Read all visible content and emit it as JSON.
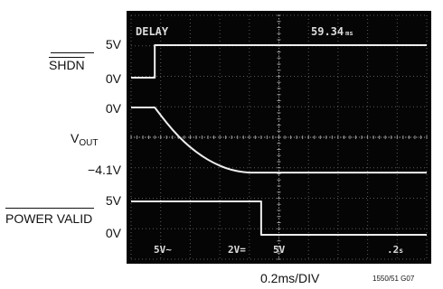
{
  "labels": {
    "shdn": "SHDN",
    "shdn_high": "5V",
    "shdn_low": "0V",
    "vout_zero": "0V",
    "vout_main": "V",
    "vout_sub": "OUT",
    "vout_neg": "−4.1V",
    "pv": "POWER VALID",
    "pv_high": "5V",
    "pv_low": "0V"
  },
  "scope": {
    "delay_label": "DELAY",
    "delay_value": "59.34",
    "delay_unit": "ms",
    "ch1_scale": "5V~",
    "ch2_scale": "2V=",
    "ch3_scale": "5V",
    "timebase": ".2",
    "timebase_suffix": "s"
  },
  "footer": {
    "time_div": "0.2ms/DIV",
    "figure_id": "1550/51 G07"
  },
  "chart_data": {
    "type": "line",
    "title": "",
    "xlabel": "0.2ms/DIV",
    "xunit": "div",
    "xlim": [
      0,
      10
    ],
    "grid": true,
    "series": [
      {
        "name": "SHDN",
        "points": [
          [
            0,
            0
          ],
          [
            0.8,
            0
          ],
          [
            0.8,
            5
          ],
          [
            10,
            5
          ]
        ],
        "unit": "V"
      },
      {
        "name": "VOUT",
        "points": [
          [
            0,
            0
          ],
          [
            0.8,
            0
          ],
          [
            1.2,
            -0.97
          ],
          [
            1.6,
            -1.82
          ],
          [
            2.0,
            -2.51
          ],
          [
            2.4,
            -3.07
          ],
          [
            2.8,
            -3.5
          ],
          [
            3.2,
            -3.82
          ],
          [
            3.6,
            -4.02
          ],
          [
            4.0,
            -4.1
          ],
          [
            10,
            -4.1
          ]
        ],
        "unit": "V"
      },
      {
        "name": "POWER VALID",
        "points": [
          [
            0,
            5
          ],
          [
            4.4,
            5
          ],
          [
            4.4,
            0
          ],
          [
            10,
            0
          ]
        ],
        "unit": "V"
      }
    ]
  }
}
